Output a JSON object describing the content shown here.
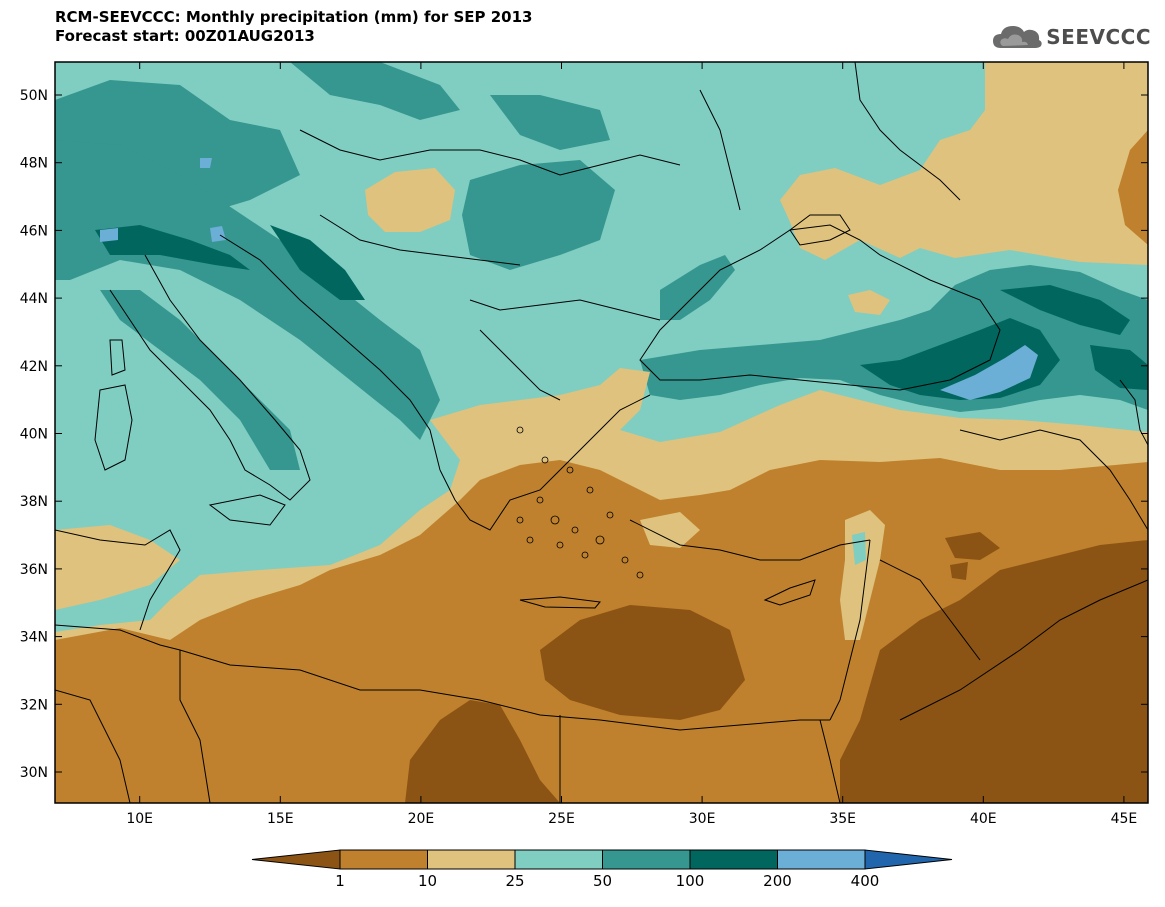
{
  "header": {
    "title_line1": "RCM-SEEVCCC: Monthly precipitation (mm) for SEP 2013",
    "title_line2": "Forecast start: 00Z01AUG2013",
    "logo_text": "SEEVCCC"
  },
  "map": {
    "variable": "Monthly precipitation",
    "unit": "mm",
    "lat_labels": [
      "50N",
      "48N",
      "46N",
      "44N",
      "42N",
      "40N",
      "38N",
      "36N",
      "34N",
      "32N",
      "30N"
    ],
    "lon_labels": [
      "10E",
      "15E",
      "20E",
      "25E",
      "30E",
      "35E",
      "40E",
      "45E"
    ]
  },
  "colorbar": {
    "levels": [
      "1",
      "10",
      "25",
      "50",
      "100",
      "200",
      "400"
    ],
    "colors": [
      "#8c5414",
      "#bf812d",
      "#dfc27d",
      "#80cdc1",
      "#35978f",
      "#01665e",
      "#6baed6",
      "#2166ac"
    ]
  }
}
